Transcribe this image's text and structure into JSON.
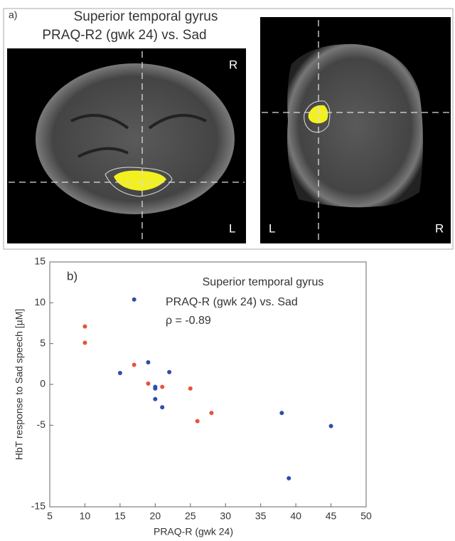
{
  "panel_a": {
    "label": "a)",
    "title": "Superior temporal gyrus",
    "subtitle": "PRAQ-R2 (gwk 24) vs. Sad",
    "axial": {
      "top_right": "R",
      "bottom_right": "L"
    },
    "coronal": {
      "bottom_left": "L",
      "bottom_right": "R"
    }
  },
  "chart_data": {
    "type": "scatter",
    "panel_label": "b)",
    "title": "Superior temporal gyrus",
    "subtitle": "PRAQ-R (gwk 24) vs. Sad",
    "annotation": "ρ = -0.89",
    "x_label": "PRAQ-R (gwk 24)",
    "y_label": "HbT response to Sad speech [µM]",
    "xlim": [
      5,
      50
    ],
    "ylim": [
      -15,
      15
    ],
    "xticks": [
      5,
      10,
      15,
      20,
      25,
      30,
      35,
      40,
      45,
      50
    ],
    "yticks": [
      -15,
      -5,
      0,
      5,
      10,
      15
    ],
    "series": [
      {
        "color": "#2c4fa8",
        "x": [
          17,
          15,
          19,
          20,
          20,
          22,
          20,
          21,
          38,
          45,
          39
        ],
        "values": [
          10.4,
          1.4,
          2.7,
          -0.3,
          -0.5,
          1.5,
          -1.8,
          -2.8,
          -3.5,
          -5.1,
          -11.5
        ]
      },
      {
        "color": "#e8523a",
        "x": [
          10,
          10,
          17,
          19,
          21,
          25,
          28,
          26
        ],
        "values": [
          7.1,
          5.1,
          2.4,
          0.1,
          -0.3,
          -0.5,
          -3.5,
          -4.5
        ]
      }
    ]
  }
}
